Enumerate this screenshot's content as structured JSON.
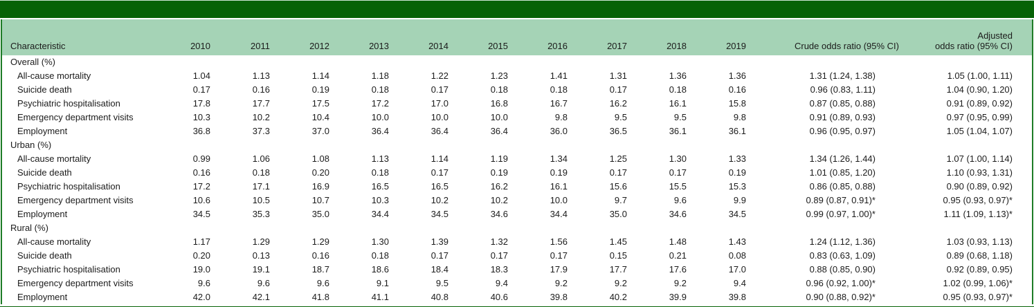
{
  "colors": {
    "dark_green": "#066206",
    "light_green": "#a5d3b6",
    "frame_green": "#1d7c26",
    "text": "#1b1b1b"
  },
  "table": {
    "columns": {
      "characteristic": "Characteristic",
      "years": [
        "2010",
        "2011",
        "2012",
        "2013",
        "2014",
        "2015",
        "2016",
        "2017",
        "2018",
        "2019"
      ],
      "crude": "Crude odds ratio (95% CI)",
      "adjusted": "Adjusted\nodds ratio (95% CI)"
    },
    "sections": [
      {
        "label": "Overall (%)",
        "rows": [
          {
            "label": "All-cause mortality",
            "values": [
              "1.04",
              "1.13",
              "1.14",
              "1.18",
              "1.22",
              "1.23",
              "1.41",
              "1.31",
              "1.36",
              "1.36"
            ],
            "crude": "1.31 (1.24, 1.38)",
            "adjusted": "1.05 (1.00, 1.11)"
          },
          {
            "label": "Suicide death",
            "values": [
              "0.17",
              "0.16",
              "0.19",
              "0.18",
              "0.17",
              "0.18",
              "0.18",
              "0.17",
              "0.18",
              "0.16"
            ],
            "crude": "0.96 (0.83, 1.11)",
            "adjusted": "1.04 (0.90, 1.20)"
          },
          {
            "label": "Psychiatric hospitalisation",
            "values": [
              "17.8",
              "17.7",
              "17.5",
              "17.2",
              "17.0",
              "16.8",
              "16.7",
              "16.2",
              "16.1",
              "15.8"
            ],
            "crude": "0.87 (0.85, 0.88)",
            "adjusted": "0.91 (0.89, 0.92)"
          },
          {
            "label": "Emergency department visits",
            "values": [
              "10.3",
              "10.2",
              "10.4",
              "10.0",
              "10.0",
              "10.0",
              "9.8",
              "9.5",
              "9.5",
              "9.8"
            ],
            "crude": "0.91 (0.89, 0.93)",
            "adjusted": "0.97 (0.95, 0.99)"
          },
          {
            "label": "Employment",
            "values": [
              "36.8",
              "37.3",
              "37.0",
              "36.4",
              "36.4",
              "36.4",
              "36.0",
              "36.5",
              "36.1",
              "36.1"
            ],
            "crude": "0.96 (0.95, 0.97)",
            "adjusted": "1.05 (1.04, 1.07)"
          }
        ]
      },
      {
        "label": "Urban (%)",
        "rows": [
          {
            "label": "All-cause mortality",
            "values": [
              "0.99",
              "1.06",
              "1.08",
              "1.13",
              "1.14",
              "1.19",
              "1.34",
              "1.25",
              "1.30",
              "1.33"
            ],
            "crude": "1.34 (1.26, 1.44)",
            "adjusted": "1.07 (1.00, 1.14)"
          },
          {
            "label": "Suicide death",
            "values": [
              "0.16",
              "0.18",
              "0.20",
              "0.18",
              "0.17",
              "0.19",
              "0.19",
              "0.17",
              "0.17",
              "0.19"
            ],
            "crude": "1.01 (0.85, 1.20)",
            "adjusted": "1.10 (0.93, 1.31)"
          },
          {
            "label": "Psychiatric hospitalisation",
            "values": [
              "17.2",
              "17.1",
              "16.9",
              "16.5",
              "16.5",
              "16.2",
              "16.1",
              "15.6",
              "15.5",
              "15.3"
            ],
            "crude": "0.86 (0.85, 0.88)",
            "adjusted": "0.90 (0.89, 0.92)"
          },
          {
            "label": "Emergency department visits",
            "values": [
              "10.6",
              "10.5",
              "10.7",
              "10.3",
              "10.2",
              "10.2",
              "10.0",
              "9.7",
              "9.6",
              "9.9"
            ],
            "crude": "0.89 (0.87, 0.91)*",
            "adjusted": "0.95 (0.93, 0.97)*"
          },
          {
            "label": "Employment",
            "values": [
              "34.5",
              "35.3",
              "35.0",
              "34.4",
              "34.5",
              "34.6",
              "34.4",
              "35.0",
              "34.6",
              "34.5"
            ],
            "crude": "0.99 (0.97, 1.00)*",
            "adjusted": "1.11 (1.09, 1.13)*"
          }
        ]
      },
      {
        "label": "Rural (%)",
        "rows": [
          {
            "label": "All-cause mortality",
            "values": [
              "1.17",
              "1.29",
              "1.29",
              "1.30",
              "1.39",
              "1.32",
              "1.56",
              "1.45",
              "1.48",
              "1.43"
            ],
            "crude": "1.24 (1.12, 1.36)",
            "adjusted": "1.03 (0.93, 1.13)"
          },
          {
            "label": "Suicide death",
            "values": [
              "0.20",
              "0.13",
              "0.16",
              "0.18",
              "0.17",
              "0.17",
              "0.17",
              "0.15",
              "0.21",
              "0.08"
            ],
            "crude": "0.83 (0.63, 1.09)",
            "adjusted": "0.89 (0.68, 1.18)"
          },
          {
            "label": "Psychiatric hospitalisation",
            "values": [
              "19.0",
              "19.1",
              "18.7",
              "18.6",
              "18.4",
              "18.3",
              "17.9",
              "17.7",
              "17.6",
              "17.0"
            ],
            "crude": "0.88 (0.85, 0.90)",
            "adjusted": "0.92 (0.89, 0.95)"
          },
          {
            "label": "Emergency department visits",
            "values": [
              "9.6",
              "9.6",
              "9.6",
              "9.1",
              "9.5",
              "9.4",
              "9.2",
              "9.2",
              "9.2",
              "9.4"
            ],
            "crude": "0.96 (0.92, 1.00)*",
            "adjusted": "1.02 (0.99, 1.06)*"
          },
          {
            "label": "Employment",
            "values": [
              "42.0",
              "42.1",
              "41.8",
              "41.1",
              "40.8",
              "40.6",
              "39.8",
              "40.2",
              "39.9",
              "39.8"
            ],
            "crude": "0.90 (0.88, 0.92)*",
            "adjusted": "0.95 (0.93, 0.97)*"
          }
        ]
      }
    ]
  }
}
